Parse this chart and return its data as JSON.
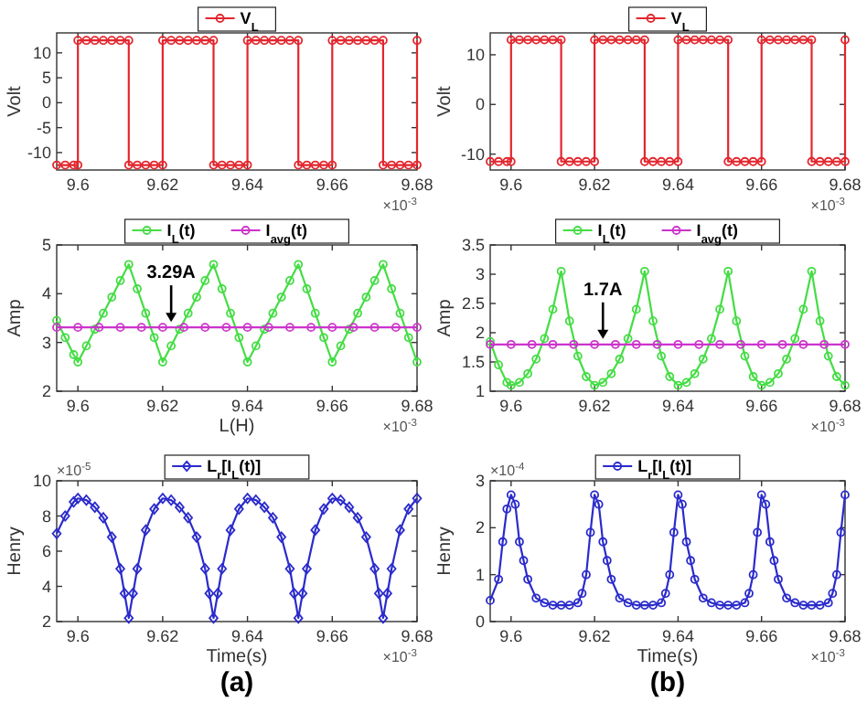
{
  "chart_data": [
    {
      "type": "line",
      "ylabel": "Volt",
      "xlim": [
        9.595,
        9.68
      ],
      "ylim": [
        -13.5,
        14
      ],
      "xticks": [
        9.6,
        9.62,
        9.64,
        9.66,
        9.68
      ],
      "yticks": [
        -10,
        -5,
        0,
        5,
        10
      ],
      "legend": "top",
      "marker": "circle",
      "annotations": [
        "×10$^{-3}$"
      ],
      "x": [
        9.595,
        9.597,
        9.599,
        9.6,
        9.6,
        9.602,
        9.604,
        9.606,
        9.608,
        9.61,
        9.612,
        9.612,
        9.614,
        9.616,
        9.618,
        9.62,
        9.62,
        9.622,
        9.624,
        9.626,
        9.628,
        9.63,
        9.632,
        9.632,
        9.634,
        9.636,
        9.638,
        9.64,
        9.64,
        9.642,
        9.644,
        9.646,
        9.648,
        9.65,
        9.652,
        9.652,
        9.654,
        9.656,
        9.658,
        9.66,
        9.66,
        9.662,
        9.664,
        9.666,
        9.668,
        9.67,
        9.672,
        9.672,
        9.674,
        9.676,
        9.678,
        9.68,
        9.68
      ],
      "series": [
        {
          "name": "V$_{L}$",
          "color": "#e3262e",
          "values": [
            -12.5,
            -12.5,
            -12.5,
            -12.5,
            12.5,
            12.5,
            12.5,
            12.5,
            12.5,
            12.5,
            12.5,
            -12.5,
            -12.5,
            -12.5,
            -12.5,
            -12.5,
            12.5,
            12.5,
            12.5,
            12.5,
            12.5,
            12.5,
            12.5,
            -12.5,
            -12.5,
            -12.5,
            -12.5,
            -12.5,
            12.5,
            12.5,
            12.5,
            12.5,
            12.5,
            12.5,
            12.5,
            -12.5,
            -12.5,
            -12.5,
            -12.5,
            -12.5,
            12.5,
            12.5,
            12.5,
            12.5,
            12.5,
            12.5,
            12.5,
            -12.5,
            -12.5,
            -12.5,
            -12.5,
            -12.5,
            12.5
          ]
        }
      ]
    },
    {
      "type": "line",
      "ylabel": "Volt",
      "xlim": [
        9.595,
        9.68
      ],
      "ylim": [
        -13.2,
        14.4
      ],
      "xticks": [
        9.6,
        9.62,
        9.64,
        9.66,
        9.68
      ],
      "yticks": [
        -10,
        0,
        10
      ],
      "legend": "top",
      "marker": "circle",
      "annotations": [
        "×10$^{-3}$"
      ],
      "x": [
        9.595,
        9.597,
        9.599,
        9.6,
        9.6,
        9.602,
        9.604,
        9.606,
        9.608,
        9.61,
        9.612,
        9.612,
        9.614,
        9.616,
        9.618,
        9.62,
        9.62,
        9.622,
        9.624,
        9.626,
        9.628,
        9.63,
        9.632,
        9.632,
        9.634,
        9.636,
        9.638,
        9.64,
        9.64,
        9.642,
        9.644,
        9.646,
        9.648,
        9.65,
        9.652,
        9.652,
        9.654,
        9.656,
        9.658,
        9.66,
        9.66,
        9.662,
        9.664,
        9.666,
        9.668,
        9.67,
        9.672,
        9.672,
        9.674,
        9.676,
        9.678,
        9.68,
        9.68
      ],
      "series": [
        {
          "name": "V$_{L}$",
          "color": "#e3262e",
          "values": [
            -11.5,
            -11.5,
            -11.5,
            -11.5,
            13,
            13,
            13,
            13,
            13,
            13,
            13,
            -11.5,
            -11.5,
            -11.5,
            -11.5,
            -11.5,
            13,
            13,
            13,
            13,
            13,
            13,
            13,
            -11.5,
            -11.5,
            -11.5,
            -11.5,
            -11.5,
            13,
            13,
            13,
            13,
            13,
            13,
            13,
            -11.5,
            -11.5,
            -11.5,
            -11.5,
            -11.5,
            13,
            13,
            13,
            13,
            13,
            13,
            13,
            -11.5,
            -11.5,
            -11.5,
            -11.5,
            -11.5,
            13
          ]
        }
      ]
    },
    {
      "type": "line",
      "ylabel": "Amp",
      "xlabel": "L(H)",
      "xlim": [
        9.595,
        9.68
      ],
      "ylim": [
        2,
        5
      ],
      "xticks": [
        9.6,
        9.62,
        9.64,
        9.66,
        9.68
      ],
      "yticks": [
        2,
        3,
        4,
        5
      ],
      "legend": "top",
      "marker": "circle",
      "annotations": [
        {
          "text": "3.29A",
          "x": 9.622,
          "y": 3.31
        },
        "×10$^{-3}$"
      ],
      "series": [
        {
          "name": "I$_{L}$(t)",
          "color": "#44dd44",
          "x": [
            9.595,
            9.597,
            9.599,
            9.6,
            9.602,
            9.604,
            9.606,
            9.608,
            9.61,
            9.612,
            9.614,
            9.616,
            9.618,
            9.62,
            9.622,
            9.624,
            9.626,
            9.628,
            9.63,
            9.632,
            9.634,
            9.636,
            9.638,
            9.64,
            9.642,
            9.644,
            9.646,
            9.648,
            9.65,
            9.652,
            9.654,
            9.656,
            9.658,
            9.66,
            9.662,
            9.664,
            9.666,
            9.668,
            9.67,
            9.672,
            9.674,
            9.676,
            9.678,
            9.68
          ],
          "values": [
            3.45,
            3.1,
            2.75,
            2.6,
            2.93,
            3.27,
            3.6,
            3.93,
            4.27,
            4.6,
            4.1,
            3.6,
            3.1,
            2.6,
            2.93,
            3.27,
            3.6,
            3.93,
            4.27,
            4.6,
            4.1,
            3.6,
            3.1,
            2.6,
            2.93,
            3.27,
            3.6,
            3.93,
            4.27,
            4.6,
            4.1,
            3.6,
            3.1,
            2.6,
            2.93,
            3.27,
            3.6,
            3.93,
            4.27,
            4.6,
            4.1,
            3.6,
            3.1,
            2.6
          ]
        },
        {
          "name": "I$_{avg}$(t)",
          "color": "#cc33cc",
          "x": [
            9.595,
            9.6,
            9.605,
            9.61,
            9.615,
            9.62,
            9.625,
            9.63,
            9.635,
            9.64,
            9.645,
            9.65,
            9.655,
            9.66,
            9.665,
            9.67,
            9.675,
            9.68
          ],
          "values": [
            3.31,
            3.31,
            3.31,
            3.31,
            3.31,
            3.31,
            3.31,
            3.31,
            3.31,
            3.31,
            3.31,
            3.31,
            3.31,
            3.31,
            3.31,
            3.31,
            3.31,
            3.31
          ]
        }
      ]
    },
    {
      "type": "line",
      "ylabel": "Amp",
      "xlim": [
        9.595,
        9.68
      ],
      "ylim": [
        1,
        3.5
      ],
      "xticks": [
        9.6,
        9.62,
        9.64,
        9.66,
        9.68
      ],
      "yticks": [
        1,
        1.5,
        2,
        2.5,
        3,
        3.5
      ],
      "legend": "top",
      "marker": "circle",
      "annotations": [
        {
          "text": "1.7A",
          "x": 9.622,
          "y": 1.8
        },
        "×10$^{-3}$"
      ],
      "series": [
        {
          "name": "I$_{L}$(t)",
          "color": "#44dd44",
          "x": [
            9.595,
            9.597,
            9.599,
            9.6,
            9.602,
            9.604,
            9.606,
            9.608,
            9.61,
            9.612,
            9.614,
            9.616,
            9.618,
            9.62,
            9.622,
            9.624,
            9.626,
            9.628,
            9.63,
            9.632,
            9.634,
            9.636,
            9.638,
            9.64,
            9.642,
            9.644,
            9.646,
            9.648,
            9.65,
            9.652,
            9.654,
            9.656,
            9.658,
            9.66,
            9.662,
            9.664,
            9.666,
            9.668,
            9.67,
            9.672,
            9.674,
            9.676,
            9.678,
            9.68
          ],
          "values": [
            1.85,
            1.45,
            1.15,
            1.1,
            1.15,
            1.3,
            1.55,
            1.9,
            2.4,
            3.05,
            2.2,
            1.6,
            1.25,
            1.1,
            1.15,
            1.3,
            1.55,
            1.9,
            2.4,
            3.05,
            2.2,
            1.6,
            1.25,
            1.1,
            1.15,
            1.3,
            1.55,
            1.9,
            2.4,
            3.05,
            2.2,
            1.6,
            1.25,
            1.1,
            1.15,
            1.3,
            1.55,
            1.9,
            2.4,
            3.05,
            2.2,
            1.6,
            1.25,
            1.1
          ]
        },
        {
          "name": "I$_{avg}$(t)",
          "color": "#cc33cc",
          "x": [
            9.595,
            9.6,
            9.605,
            9.61,
            9.615,
            9.62,
            9.625,
            9.63,
            9.635,
            9.64,
            9.645,
            9.65,
            9.655,
            9.66,
            9.665,
            9.67,
            9.675,
            9.68
          ],
          "values": [
            1.8,
            1.8,
            1.8,
            1.8,
            1.8,
            1.8,
            1.8,
            1.8,
            1.8,
            1.8,
            1.8,
            1.8,
            1.8,
            1.8,
            1.8,
            1.8,
            1.8,
            1.8
          ]
        }
      ]
    },
    {
      "type": "line",
      "ylabel": "Henry",
      "xlabel": "Time(s)",
      "xlim": [
        9.595,
        9.68
      ],
      "ylim": [
        2,
        10
      ],
      "xticks": [
        9.6,
        9.62,
        9.64,
        9.66,
        9.68
      ],
      "yticks": [
        2,
        4,
        6,
        8,
        10
      ],
      "legend": "top",
      "marker": "diamond",
      "annotations": [
        "×10$^{-5}$",
        "×10$^{-3}$",
        "(a)"
      ],
      "series": [
        {
          "name": "L$_{r}$[I$_{L}$(t)]",
          "color": "#2b2bcc",
          "x": [
            9.595,
            9.597,
            9.599,
            9.6,
            9.602,
            9.604,
            9.606,
            9.608,
            9.61,
            9.611,
            9.612,
            9.613,
            9.614,
            9.616,
            9.618,
            9.62,
            9.622,
            9.624,
            9.626,
            9.628,
            9.63,
            9.631,
            9.632,
            9.633,
            9.634,
            9.636,
            9.638,
            9.64,
            9.642,
            9.644,
            9.646,
            9.648,
            9.65,
            9.651,
            9.652,
            9.653,
            9.654,
            9.656,
            9.658,
            9.66,
            9.662,
            9.664,
            9.666,
            9.668,
            9.67,
            9.671,
            9.672,
            9.673,
            9.674,
            9.676,
            9.678,
            9.68
          ],
          "values": [
            7,
            8,
            8.8,
            9,
            8.9,
            8.5,
            7.9,
            6.8,
            5,
            3.6,
            2.2,
            3.6,
            5,
            7.2,
            8.4,
            9,
            8.9,
            8.5,
            7.9,
            6.8,
            5,
            3.6,
            2.2,
            3.6,
            5,
            7.2,
            8.4,
            9,
            8.9,
            8.5,
            7.9,
            6.8,
            5,
            3.6,
            2.2,
            3.6,
            5,
            7.2,
            8.4,
            9,
            8.9,
            8.5,
            7.9,
            6.8,
            5,
            3.6,
            2.2,
            3.6,
            5,
            7.2,
            8.4,
            9
          ]
        }
      ]
    },
    {
      "type": "line",
      "ylabel": "Henry",
      "xlabel": "Time(s)",
      "xlim": [
        9.595,
        9.68
      ],
      "ylim": [
        0,
        3
      ],
      "xticks": [
        9.6,
        9.62,
        9.64,
        9.66,
        9.68
      ],
      "yticks": [
        0,
        1,
        2,
        3
      ],
      "legend": "top",
      "marker": "circle",
      "annotations": [
        "×10$^{-4}$",
        "×10$^{-3}$",
        "(b)"
      ],
      "series": [
        {
          "name": "L$_{r}$[I$_{L}$(t)]",
          "color": "#2b2bcc",
          "x": [
            9.595,
            9.597,
            9.598,
            9.599,
            9.6,
            9.601,
            9.602,
            9.603,
            9.604,
            9.606,
            9.608,
            9.61,
            9.612,
            9.614,
            9.616,
            9.617,
            9.618,
            9.619,
            9.62,
            9.621,
            9.622,
            9.623,
            9.624,
            9.626,
            9.628,
            9.63,
            9.632,
            9.634,
            9.636,
            9.637,
            9.638,
            9.639,
            9.64,
            9.641,
            9.642,
            9.643,
            9.644,
            9.646,
            9.648,
            9.65,
            9.652,
            9.654,
            9.656,
            9.657,
            9.658,
            9.659,
            9.66,
            9.661,
            9.662,
            9.663,
            9.664,
            9.666,
            9.668,
            9.67,
            9.672,
            9.674,
            9.676,
            9.677,
            9.678,
            9.679,
            9.68
          ],
          "values": [
            0.45,
            0.9,
            1.7,
            2.4,
            2.7,
            2.5,
            1.7,
            1.3,
            0.9,
            0.5,
            0.4,
            0.35,
            0.35,
            0.35,
            0.4,
            0.6,
            1,
            1.9,
            2.7,
            2.5,
            1.7,
            1.3,
            0.9,
            0.5,
            0.4,
            0.35,
            0.35,
            0.35,
            0.4,
            0.6,
            1,
            1.9,
            2.7,
            2.5,
            1.7,
            1.3,
            0.9,
            0.5,
            0.4,
            0.35,
            0.35,
            0.35,
            0.4,
            0.6,
            1,
            1.9,
            2.7,
            2.5,
            1.7,
            1.3,
            0.9,
            0.5,
            0.4,
            0.35,
            0.35,
            0.35,
            0.4,
            0.6,
            1,
            1.9,
            2.7
          ]
        }
      ]
    }
  ]
}
